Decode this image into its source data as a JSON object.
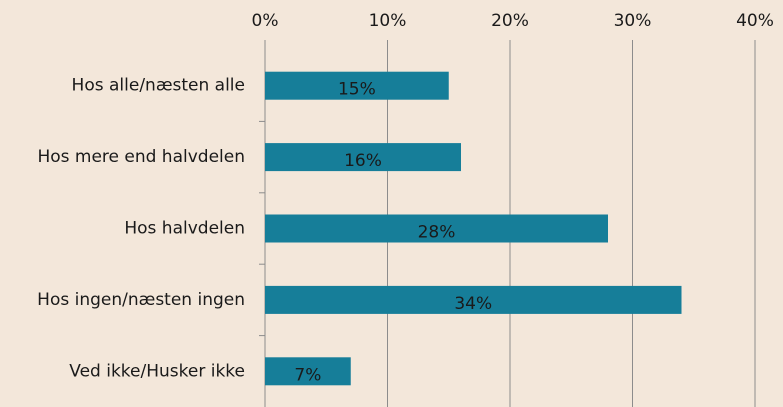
{
  "chart_data": {
    "type": "bar",
    "orientation": "horizontal",
    "categories": [
      "Hos alle/næsten alle",
      "Hos mere end halvdelen",
      "Hos halvdelen",
      "Hos ingen/næsten ingen",
      "Ved ikke/Husker ikke"
    ],
    "values": [
      15,
      16,
      28,
      34,
      7
    ],
    "value_labels": [
      "15%",
      "16%",
      "28%",
      "34%",
      "7%"
    ],
    "color": "#167e99",
    "xlim": [
      0,
      40
    ],
    "xticks": [
      {
        "value": 0,
        "label": "0%"
      },
      {
        "value": 10,
        "label": "10%"
      },
      {
        "value": 20,
        "label": "20%"
      },
      {
        "value": 30,
        "label": "30%"
      },
      {
        "value": 40,
        "label": "40%"
      }
    ],
    "grid": true
  }
}
